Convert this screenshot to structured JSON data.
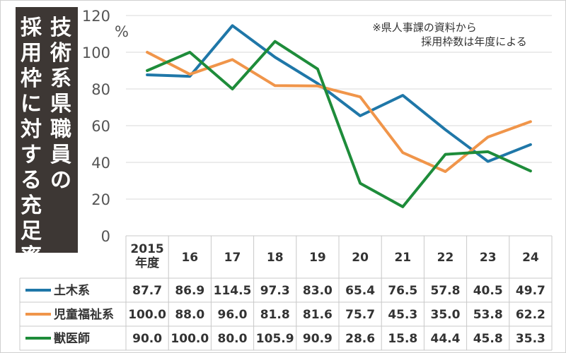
{
  "chart_data": {
    "type": "line",
    "title_lines": [
      "技術系県職員の",
      "採用枠に対する充足率"
    ],
    "unit_label": "%",
    "note_lines": [
      "※県人事課の資料から",
      "採用枠数は年度による"
    ],
    "categories": [
      [
        "2015",
        "年度"
      ],
      [
        "16"
      ],
      [
        "17"
      ],
      [
        "18"
      ],
      [
        "19"
      ],
      [
        "20"
      ],
      [
        "21"
      ],
      [
        "22"
      ],
      [
        "23"
      ],
      [
        "24"
      ]
    ],
    "ylim": [
      0,
      120
    ],
    "yticks": [
      0,
      20,
      40,
      60,
      80,
      100,
      120
    ],
    "grid": true,
    "series": [
      {
        "name": "土木系",
        "color": "#1f77a8",
        "values": [
          87.7,
          86.9,
          114.5,
          97.3,
          83.0,
          65.4,
          76.5,
          57.8,
          40.5,
          49.7
        ],
        "labels": [
          "87.7",
          "86.9",
          "114.5",
          "97.3",
          "83.0",
          "65.4",
          "76.5",
          "57.8",
          "40.5",
          "49.7"
        ]
      },
      {
        "name": "児童福祉系",
        "color": "#f0954a",
        "values": [
          100.0,
          88.0,
          96.0,
          81.8,
          81.6,
          75.7,
          45.3,
          35.0,
          53.8,
          62.2
        ],
        "labels": [
          "100.0",
          "88.0",
          "96.0",
          "81.8",
          "81.6",
          "75.7",
          "45.3",
          "35.0",
          "53.8",
          "62.2"
        ]
      },
      {
        "name": "獣医師",
        "color": "#1e8c3a",
        "values": [
          90.0,
          100.0,
          80.0,
          105.9,
          90.9,
          28.6,
          15.8,
          44.4,
          45.8,
          35.3
        ],
        "labels": [
          "90.0",
          "100.0",
          "80.0",
          "105.9",
          "90.9",
          "28.6",
          "15.8",
          "44.4",
          "45.8",
          "35.3"
        ]
      }
    ]
  }
}
